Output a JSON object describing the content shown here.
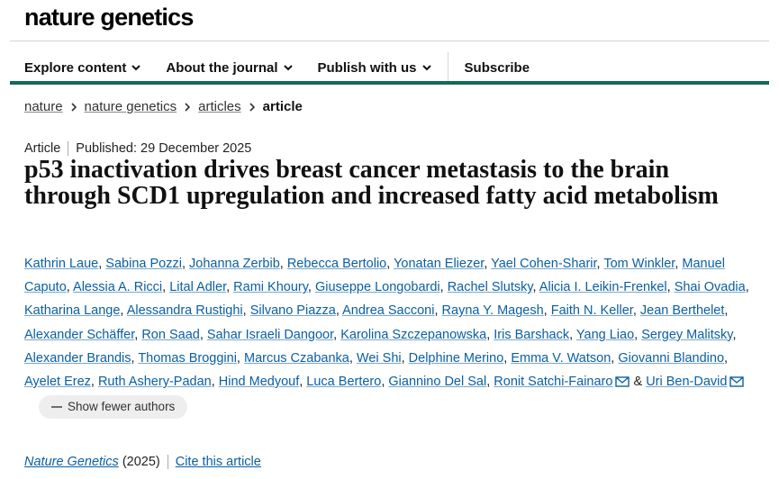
{
  "header": {
    "logo": "nature genetics",
    "nav": [
      "Explore content",
      "About the journal",
      "Publish with us"
    ],
    "subscribe": "Subscribe"
  },
  "breadcrumbs": [
    "nature",
    "nature genetics",
    "articles",
    "article"
  ],
  "meta": {
    "type": "Article",
    "published": "Published: 29 December 2025"
  },
  "title": "p53 inactivation drives breast cancer metastasis to the brain through SCD1 upregulation and increased fatty acid metabolism",
  "authors": [
    {
      "name": "Kathrin Laue"
    },
    {
      "name": "Sabina Pozzi"
    },
    {
      "name": "Johanna Zerbib"
    },
    {
      "name": "Rebecca Bertolio"
    },
    {
      "name": "Yonatan Eliezer"
    },
    {
      "name": "Yael Cohen-Sharir"
    },
    {
      "name": "Tom Winkler"
    },
    {
      "name": "Manuel Caputo"
    },
    {
      "name": "Alessia A. Ricci"
    },
    {
      "name": "Lital Adler"
    },
    {
      "name": "Rami Khoury"
    },
    {
      "name": "Giuseppe Longobardi"
    },
    {
      "name": "Rachel Slutsky"
    },
    {
      "name": "Alicia I. Leikin-Frenkel"
    },
    {
      "name": "Shai Ovadia"
    },
    {
      "name": "Katharina Lange"
    },
    {
      "name": "Alessandra Rustighi"
    },
    {
      "name": "Silvano Piazza"
    },
    {
      "name": "Andrea Sacconi"
    },
    {
      "name": "Rayna Y. Magesh"
    },
    {
      "name": "Faith N. Keller"
    },
    {
      "name": "Jean Berthelet"
    },
    {
      "name": "Alexander Schäffer"
    },
    {
      "name": "Ron Saad"
    },
    {
      "name": "Sahar Israeli Dangoor"
    },
    {
      "name": "Karolina Szczepanowska"
    },
    {
      "name": "Iris Barshack"
    },
    {
      "name": "Yang Liao"
    },
    {
      "name": "Sergey Malitsky"
    },
    {
      "name": "Alexander Brandis"
    },
    {
      "name": "Thomas Broggini"
    },
    {
      "name": "Marcus Czabanka"
    },
    {
      "name": "Wei Shi"
    },
    {
      "name": "Delphine Merino"
    },
    {
      "name": "Emma V. Watson"
    },
    {
      "name": "Giovanni Blandino"
    },
    {
      "name": "Ayelet Erez"
    },
    {
      "name": "Ruth Ashery-Padan"
    },
    {
      "name": "Hind Medyouf"
    },
    {
      "name": "Luca Bertero"
    },
    {
      "name": "Giannino Del Sal"
    },
    {
      "name": "Ronit Satchi-Fainaro",
      "email_icon": true
    },
    {
      "name": "Uri Ben-David",
      "email_icon": true
    }
  ],
  "author_conjunction": "&",
  "show_fewer": "Show fewer authors",
  "citation": {
    "journal": "Nature Genetics",
    "year": "(2025)",
    "cite": "Cite this article"
  }
}
